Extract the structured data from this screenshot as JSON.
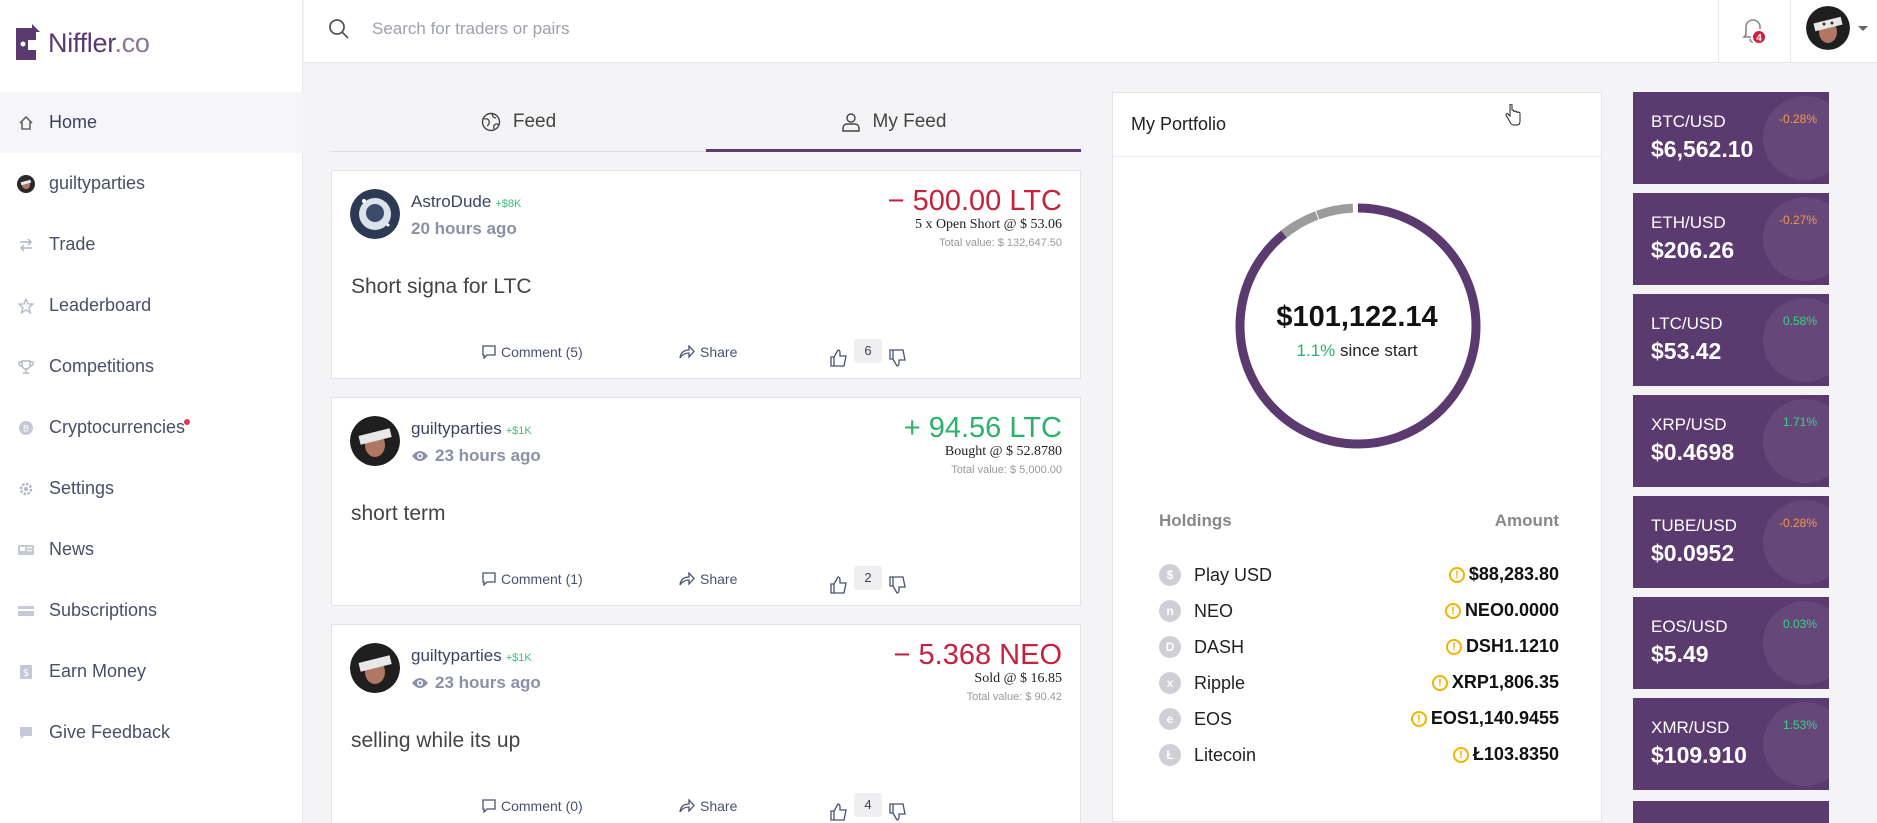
{
  "logo": {
    "name": "Niffler",
    "tld": ".co"
  },
  "sidebar": {
    "items": [
      {
        "label": "Home",
        "icon": "home-icon"
      },
      {
        "label": "guiltyparties",
        "icon": "avatar"
      },
      {
        "label": "Trade",
        "icon": "arrows-icon"
      },
      {
        "label": "Leaderboard",
        "icon": "star-icon"
      },
      {
        "label": "Competitions",
        "icon": "trophy-icon"
      },
      {
        "label": "Cryptocurrencies",
        "icon": "coin-icon"
      },
      {
        "label": "Settings",
        "icon": "gear-icon"
      },
      {
        "label": "News",
        "icon": "news-icon"
      },
      {
        "label": "Subscriptions",
        "icon": "card-icon"
      },
      {
        "label": "Earn Money",
        "icon": "dollar-icon"
      },
      {
        "label": "Give Feedback",
        "icon": "chat-icon"
      }
    ]
  },
  "header": {
    "search_placeholder": "Search for traders or pairs",
    "notification_count": "4"
  },
  "tabs": [
    {
      "label": "Feed"
    },
    {
      "label": "My Feed"
    }
  ],
  "posts": [
    {
      "user": "AstroDude",
      "badge": "+$8K",
      "time": "20 hours ago",
      "amount": "− 500.00 LTC",
      "detail": "5 x Open Short @ $ 53.06",
      "total": "Total value: $ 132,647.50",
      "text": "Short signa for LTC",
      "comment": "Comment (5)",
      "share": "Share",
      "votes": "6"
    },
    {
      "user": "guiltyparties",
      "badge": "+$1K",
      "time": "23 hours ago",
      "amount": "+ 94.56 LTC",
      "detail": "Bought @ $ 52.8780",
      "total": "Total value: $ 5,000.00",
      "text": "short term",
      "comment": "Comment (1)",
      "share": "Share",
      "votes": "2"
    },
    {
      "user": "guiltyparties",
      "badge": "+$1K",
      "time": "23 hours ago",
      "amount": "− 5.368 NEO",
      "detail": "Sold @ $ 16.85",
      "total": "Total value: $ 90.42",
      "text": "selling while its up",
      "comment": "Comment (0)",
      "share": "Share",
      "votes": "4"
    }
  ],
  "portfolio": {
    "title": "My Portfolio",
    "value": "$101,122.14",
    "since_pct": "1.1%",
    "since_label": "since start",
    "holdings_label": "Holdings",
    "amount_label": "Amount",
    "holdings": [
      {
        "name": "Play USD",
        "amount": "$88,283.80",
        "icon": "$"
      },
      {
        "name": "NEO",
        "amount": "NEO0.0000",
        "icon": "n"
      },
      {
        "name": "DASH",
        "amount": "DSH1.1210",
        "icon": "D"
      },
      {
        "name": "Ripple",
        "amount": "XRP1,806.35",
        "icon": "x"
      },
      {
        "name": "EOS",
        "amount": "EOS1,140.9455",
        "icon": "e"
      },
      {
        "name": "Litecoin",
        "amount": "Ł103.8350",
        "icon": "Ł"
      }
    ]
  },
  "tickers": [
    {
      "pair": "BTC/USD",
      "price": "$6,562.10",
      "change": "-0.28%",
      "dir": "down"
    },
    {
      "pair": "ETH/USD",
      "price": "$206.26",
      "change": "-0.27%",
      "dir": "down"
    },
    {
      "pair": "LTC/USD",
      "price": "$53.42",
      "change": "0.58%",
      "dir": "up"
    },
    {
      "pair": "XRP/USD",
      "price": "$0.4698",
      "change": "1.71%",
      "dir": "up"
    },
    {
      "pair": "TUBE/USD",
      "price": "$0.0952",
      "change": "-0.28%",
      "dir": "down"
    },
    {
      "pair": "EOS/USD",
      "price": "$5.49",
      "change": "0.03%",
      "dir": "up"
    },
    {
      "pair": "XMR/USD",
      "price": "$109.910",
      "change": "1.53%",
      "dir": "up"
    }
  ],
  "colors": {
    "brand": "#5b3a6f",
    "negative": "#c5223d",
    "positive": "#29b36a"
  }
}
